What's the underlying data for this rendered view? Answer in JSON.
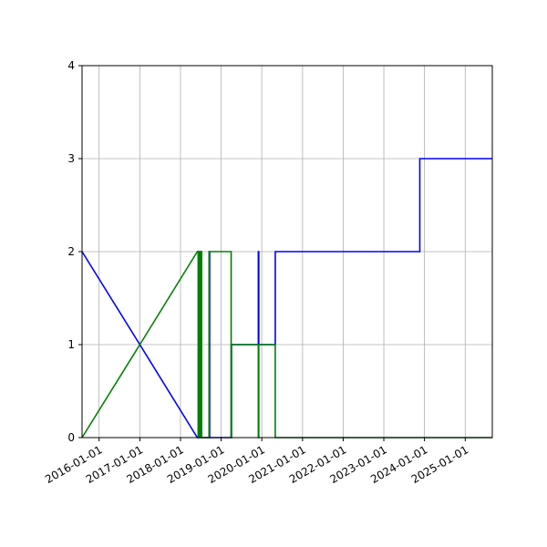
{
  "chart_data": {
    "type": "line",
    "title": "",
    "xlabel": "",
    "ylabel": "",
    "x_type": "date",
    "xlim": [
      "2015-08-01",
      "2025-09-01"
    ],
    "ylim": [
      0,
      4
    ],
    "grid": true,
    "legend": "none",
    "x_ticks": [
      "2016-01-01",
      "2017-01-01",
      "2018-01-01",
      "2019-01-01",
      "2020-01-01",
      "2021-01-01",
      "2022-01-01",
      "2023-01-01",
      "2024-01-01",
      "2025-01-01"
    ],
    "y_ticks": [
      0,
      1,
      2,
      3,
      4
    ],
    "series": [
      {
        "color": "#0000ff",
        "points": [
          [
            "2015-08-01",
            2
          ],
          [
            "2017-01-01",
            1
          ],
          [
            "2018-06-01",
            0
          ],
          [
            "2018-06-10",
            0
          ],
          [
            "2018-06-10",
            2
          ],
          [
            "2018-06-15",
            2
          ],
          [
            "2018-06-15",
            0
          ],
          [
            "2018-07-01",
            0
          ],
          [
            "2018-07-01",
            2
          ],
          [
            "2018-07-05",
            2
          ],
          [
            "2018-07-05",
            0
          ],
          [
            "2018-09-15",
            0
          ],
          [
            "2018-09-15",
            2
          ],
          [
            "2018-09-20",
            2
          ],
          [
            "2018-09-20",
            0
          ],
          [
            "2019-04-01",
            0
          ],
          [
            "2019-04-01",
            1
          ],
          [
            "2019-12-01",
            1
          ],
          [
            "2019-12-01",
            2
          ],
          [
            "2019-12-05",
            2
          ],
          [
            "2019-12-05",
            1
          ],
          [
            "2020-05-01",
            1
          ],
          [
            "2020-05-01",
            2
          ],
          [
            "2023-11-20",
            2
          ],
          [
            "2023-11-20",
            3
          ],
          [
            "2025-09-01",
            3
          ]
        ]
      },
      {
        "color": "#008000",
        "points": [
          [
            "2015-08-01",
            0
          ],
          [
            "2017-01-01",
            1
          ],
          [
            "2018-06-01",
            2
          ],
          [
            "2018-06-10",
            2
          ],
          [
            "2018-06-10",
            0
          ],
          [
            "2018-06-15",
            0
          ],
          [
            "2018-06-15",
            2
          ],
          [
            "2018-06-25",
            2
          ],
          [
            "2018-06-25",
            0
          ],
          [
            "2018-07-05",
            0
          ],
          [
            "2018-07-05",
            2
          ],
          [
            "2018-07-10",
            2
          ],
          [
            "2018-07-10",
            0
          ],
          [
            "2018-09-15",
            0
          ],
          [
            "2018-09-15",
            2
          ],
          [
            "2019-04-01",
            2
          ],
          [
            "2019-04-01",
            0
          ],
          [
            "2019-04-05",
            0
          ],
          [
            "2019-04-05",
            1
          ],
          [
            "2019-12-01",
            1
          ],
          [
            "2019-12-01",
            0
          ],
          [
            "2019-12-05",
            0
          ],
          [
            "2019-12-05",
            1
          ],
          [
            "2020-05-01",
            1
          ],
          [
            "2020-05-01",
            0
          ],
          [
            "2025-09-01",
            0
          ]
        ]
      }
    ]
  }
}
